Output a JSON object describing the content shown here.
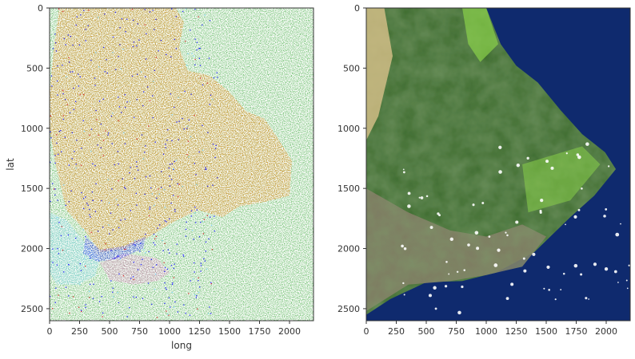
{
  "chart_data": [
    {
      "type": "heatmap",
      "title": "",
      "xlabel": "long",
      "ylabel": "lat",
      "xlim": [
        0,
        2200
      ],
      "ylim": [
        2600,
        0
      ],
      "xticks": [
        0,
        250,
        500,
        750,
        1000,
        1250,
        1500,
        1750,
        2000
      ],
      "yticks": [
        0,
        500,
        1000,
        1500,
        2000,
        2500
      ],
      "grid": false,
      "legend": "none",
      "classes": [
        {
          "name": "",
          "color": "#2ca02c"
        },
        {
          "name": "",
          "color": "#ff7f0e"
        },
        {
          "name": "",
          "color": "#1f1fff"
        },
        {
          "name": "",
          "color": "#7fd8ff"
        },
        {
          "name": "",
          "color": "#e377c2"
        },
        {
          "name": "",
          "color": "#d62728"
        }
      ],
      "regions": [
        {
          "class": 0,
          "polygon": [
            [
              0,
              0
            ],
            [
              2200,
              0
            ],
            [
              2200,
              2600
            ],
            [
              0,
              2600
            ]
          ]
        },
        {
          "class": 1,
          "polygon": [
            [
              80,
              0
            ],
            [
              1050,
              0
            ],
            [
              1120,
              120
            ],
            [
              1080,
              330
            ],
            [
              1150,
              520
            ],
            [
              1330,
              560
            ],
            [
              1500,
              700
            ],
            [
              1640,
              860
            ],
            [
              1790,
              920
            ],
            [
              1880,
              1050
            ],
            [
              2020,
              1270
            ],
            [
              2000,
              1560
            ],
            [
              1800,
              1610
            ],
            [
              1580,
              1650
            ],
            [
              1440,
              1740
            ],
            [
              1240,
              1680
            ],
            [
              1030,
              1780
            ],
            [
              800,
              1920
            ],
            [
              620,
              2000
            ],
            [
              420,
              2030
            ],
            [
              300,
              1860
            ],
            [
              140,
              1680
            ],
            [
              50,
              1300
            ],
            [
              0,
              1000
            ],
            [
              0,
              700
            ],
            [
              40,
              300
            ]
          ]
        },
        {
          "class": 3,
          "polygon": [
            [
              0,
              1700
            ],
            [
              140,
              1760
            ],
            [
              300,
              1960
            ],
            [
              420,
              2080
            ],
            [
              380,
              2230
            ],
            [
              230,
              2300
            ],
            [
              60,
              2300
            ],
            [
              0,
              2200
            ]
          ]
        },
        {
          "class": 4,
          "polygon": [
            [
              420,
              2120
            ],
            [
              620,
              2040
            ],
            [
              900,
              2080
            ],
            [
              1000,
              2200
            ],
            [
              900,
              2270
            ],
            [
              700,
              2300
            ],
            [
              500,
              2260
            ]
          ]
        },
        {
          "class": 2,
          "polygon": [
            [
              300,
              1900
            ],
            [
              420,
              2010
            ],
            [
              620,
              1980
            ],
            [
              800,
              1900
            ],
            [
              780,
              2000
            ],
            [
              600,
              2080
            ],
            [
              400,
              2110
            ],
            [
              280,
              2040
            ]
          ]
        }
      ]
    },
    {
      "type": "heatmap",
      "title": "",
      "xlabel": "",
      "ylabel": "",
      "xlim": [
        0,
        2200
      ],
      "ylim": [
        2600,
        0
      ],
      "xticks": [
        0,
        250,
        500,
        750,
        1000,
        1250,
        1500,
        1750,
        2000
      ],
      "yticks": [
        0,
        500,
        1000,
        1500,
        2000,
        2500
      ],
      "grid": false,
      "legend": "none",
      "colors": {
        "ocean": "#0f2a6e",
        "shallow": "#2b6fa0",
        "forest": "#3a6b2a",
        "bright_green": "#8ad24a",
        "dry_lava": "#8a7a6a",
        "sand": "#d8c08a",
        "cloud": "#ffffff"
      },
      "island_outline": [
        [
          0,
          0
        ],
        [
          1000,
          0
        ],
        [
          1120,
          300
        ],
        [
          1250,
          480
        ],
        [
          1430,
          620
        ],
        [
          1620,
          850
        ],
        [
          1800,
          1050
        ],
        [
          1990,
          1200
        ],
        [
          2080,
          1340
        ],
        [
          1900,
          1560
        ],
        [
          1700,
          1740
        ],
        [
          1400,
          2030
        ],
        [
          1080,
          2200
        ],
        [
          800,
          2270
        ],
        [
          500,
          2280
        ],
        [
          200,
          2420
        ],
        [
          0,
          2550
        ]
      ]
    }
  ]
}
